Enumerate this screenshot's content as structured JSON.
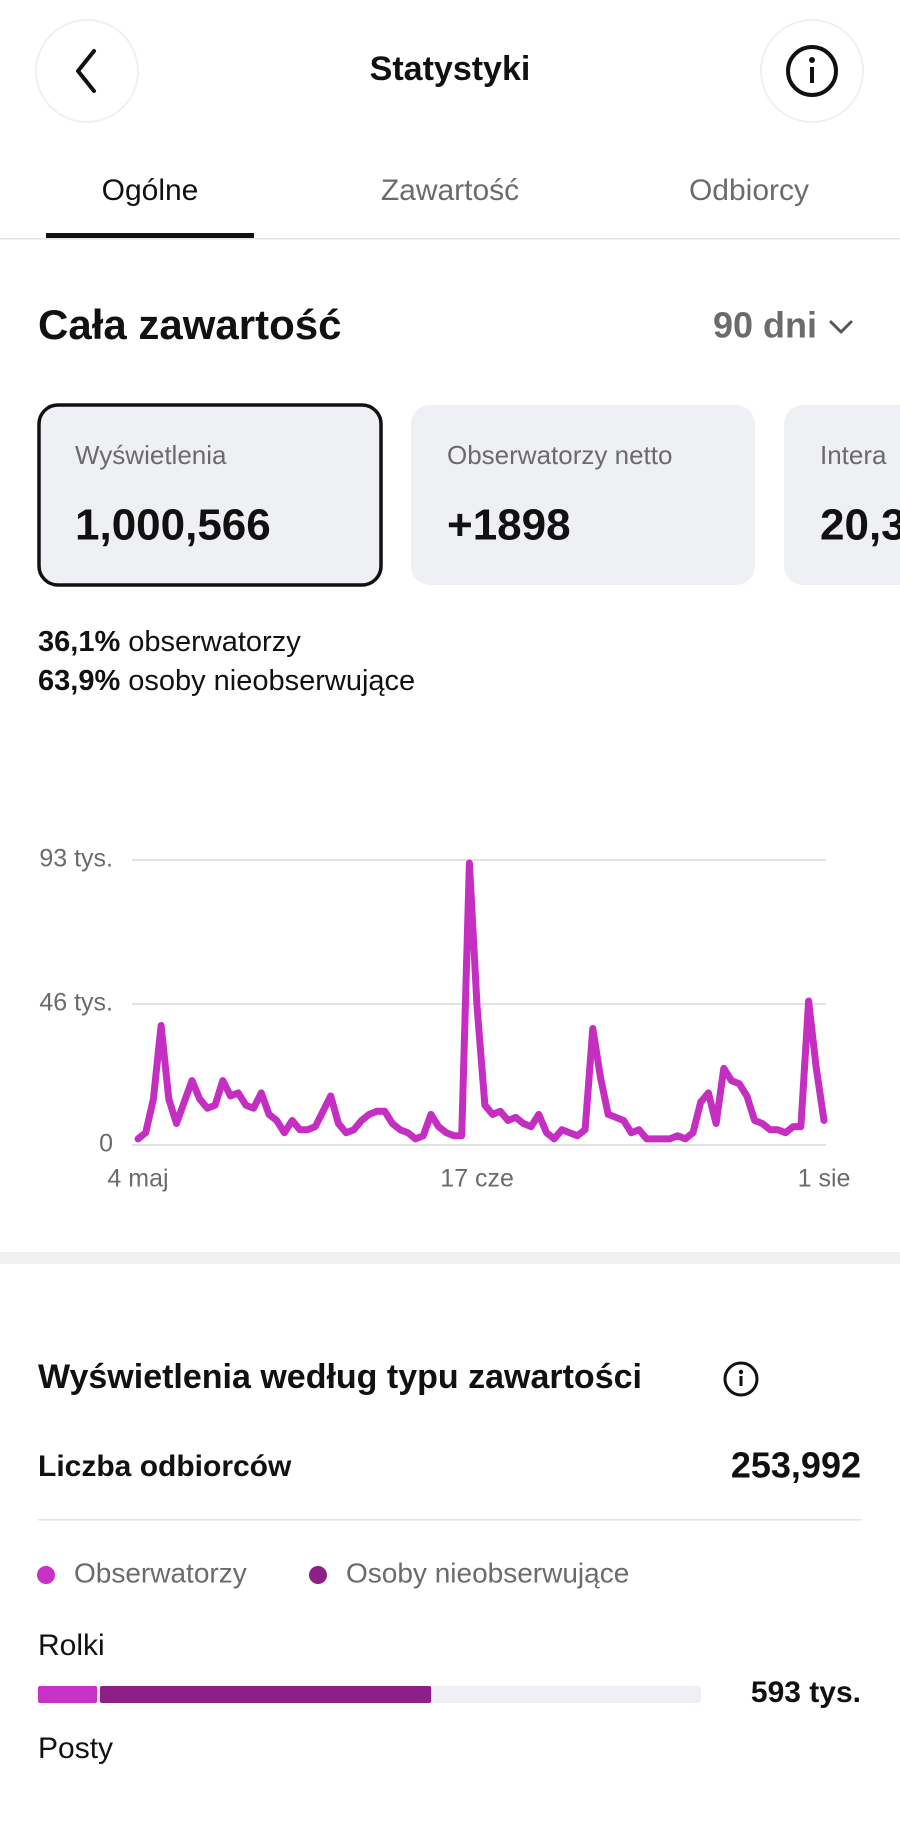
{
  "header": {
    "title": "Statystyki"
  },
  "tabs": [
    "Ogólne",
    "Zawartość",
    "Odbiorcy"
  ],
  "section": {
    "title": "Cała zawartość",
    "period": "90 dni"
  },
  "cards": [
    {
      "label": "Wyświetlenia",
      "value": "1,000,566"
    },
    {
      "label": "Obserwatorzy netto",
      "value": "+1898"
    },
    {
      "label": "Intera",
      "value": "20,3"
    }
  ],
  "breakdown": [
    {
      "share": "36,1%",
      "label": "obserwatorzy"
    },
    {
      "share": "63,9%",
      "label": "osoby nieobserwujące"
    }
  ],
  "chart_data": {
    "type": "line",
    "color": "#c42fc2",
    "grid": true,
    "categories": [
      "4 maj",
      null,
      null,
      null,
      null,
      null,
      null,
      null,
      null,
      null,
      null,
      null,
      null,
      null,
      null,
      null,
      null,
      null,
      null,
      null,
      null,
      null,
      null,
      null,
      null,
      null,
      null,
      null,
      null,
      null,
      null,
      null,
      null,
      null,
      null,
      null,
      null,
      null,
      null,
      null,
      null,
      null,
      null,
      null,
      "17 cze",
      null,
      null,
      null,
      null,
      null,
      null,
      null,
      null,
      null,
      null,
      null,
      null,
      null,
      null,
      null,
      null,
      null,
      null,
      null,
      null,
      null,
      null,
      null,
      null,
      null,
      null,
      null,
      null,
      null,
      null,
      null,
      null,
      null,
      null,
      null,
      null,
      null,
      null,
      null,
      null,
      null,
      null,
      null,
      null,
      "1 sie"
    ],
    "values": [
      2,
      4,
      15,
      39,
      15,
      7,
      14,
      21,
      15,
      12,
      13,
      21,
      16,
      17,
      13,
      12,
      17,
      10,
      8,
      4,
      8,
      5,
      5,
      6,
      11,
      16,
      7,
      4,
      5,
      8,
      10,
      11,
      11,
      7,
      5,
      4,
      2,
      3,
      10,
      6,
      4,
      3,
      3,
      92,
      45,
      13,
      10,
      11,
      8,
      9,
      7,
      6,
      10,
      4,
      2,
      5,
      4,
      3,
      5,
      38,
      22,
      10,
      9,
      8,
      4,
      5,
      2,
      2,
      2,
      2,
      3,
      2,
      4,
      14,
      17,
      7,
      25,
      21,
      20,
      16,
      8,
      7,
      5,
      5,
      4,
      6,
      6,
      47,
      25,
      8
    ],
    "ylim": [
      0,
      93
    ],
    "yticks": [
      0,
      {
        "value": 46,
        "label": "46 tys."
      },
      {
        "value": 93,
        "label": "93 tys."
      }
    ]
  },
  "content_types": {
    "title": "Wyświetlenia według typu zawartości",
    "audience_label": "Liczba odbiorców",
    "audience_value": "253,992",
    "bar_chart": {
      "type": "stacked-bar",
      "xlim": [
        0,
        1000
      ],
      "series": [
        {
          "name": "Obserwatorzy",
          "color": "#c930c6"
        },
        {
          "name": "Osoby nieobserwujące",
          "color": "#8e1f86"
        }
      ],
      "rows": [
        {
          "label": "Rolki",
          "values": [
            89,
            504
          ],
          "total": 593,
          "total_label": "593 tys."
        }
      ]
    },
    "next_row": "Posty"
  }
}
